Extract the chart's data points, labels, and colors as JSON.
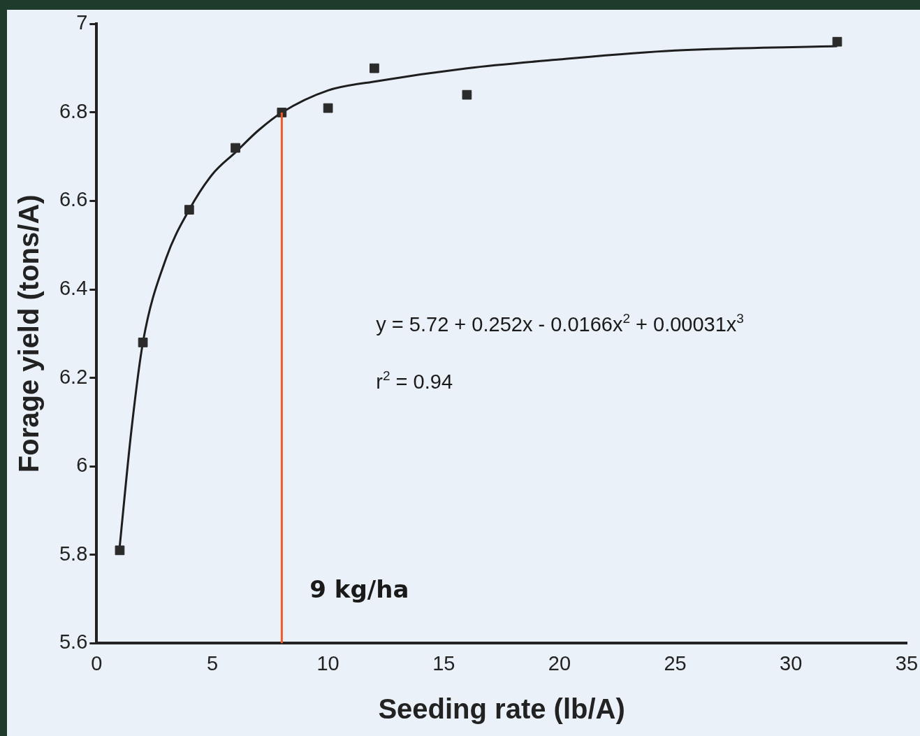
{
  "chart_data": {
    "type": "scatter",
    "xlabel": "Seeding rate (lb/A)",
    "ylabel": "Forage yield (tons/A)",
    "xlim": [
      0,
      35
    ],
    "xticks": [
      0,
      5,
      10,
      15,
      20,
      25,
      30,
      35
    ],
    "ylim": [
      5.6,
      7
    ],
    "yticks": [
      5.6,
      5.8,
      6,
      6.2,
      6.4,
      6.6,
      6.8,
      7
    ],
    "grid": false,
    "legend": false,
    "series": [
      {
        "color": "#2b2b2b",
        "marker": "square",
        "x": [
          1,
          2,
          4,
          6,
          8,
          10,
          12,
          16,
          32
        ],
        "values": [
          5.81,
          6.28,
          6.58,
          6.72,
          6.8,
          6.81,
          6.9,
          6.84,
          6.96
        ]
      },
      {
        "type": "line",
        "color": "#1e1e1e",
        "marker": "none",
        "line_style": "solid",
        "x": [
          1,
          1.5,
          2,
          3,
          4,
          5,
          6,
          7,
          8,
          10,
          12,
          16,
          20,
          25,
          32
        ],
        "values": [
          5.82,
          6.08,
          6.28,
          6.47,
          6.58,
          6.66,
          6.71,
          6.76,
          6.8,
          6.85,
          6.87,
          6.9,
          6.92,
          6.94,
          6.95
        ]
      }
    ],
    "ref_lines": [
      {
        "axis": "x",
        "value": 8,
        "label": "9 kg/ha",
        "color": "#f05a28"
      }
    ],
    "annotations": [
      "y = 5.72 + 0.252x - 0.0166x$^{2}$ + 0.00031x$^{3}$",
      "r$^{2}$ = 0.94"
    ]
  }
}
